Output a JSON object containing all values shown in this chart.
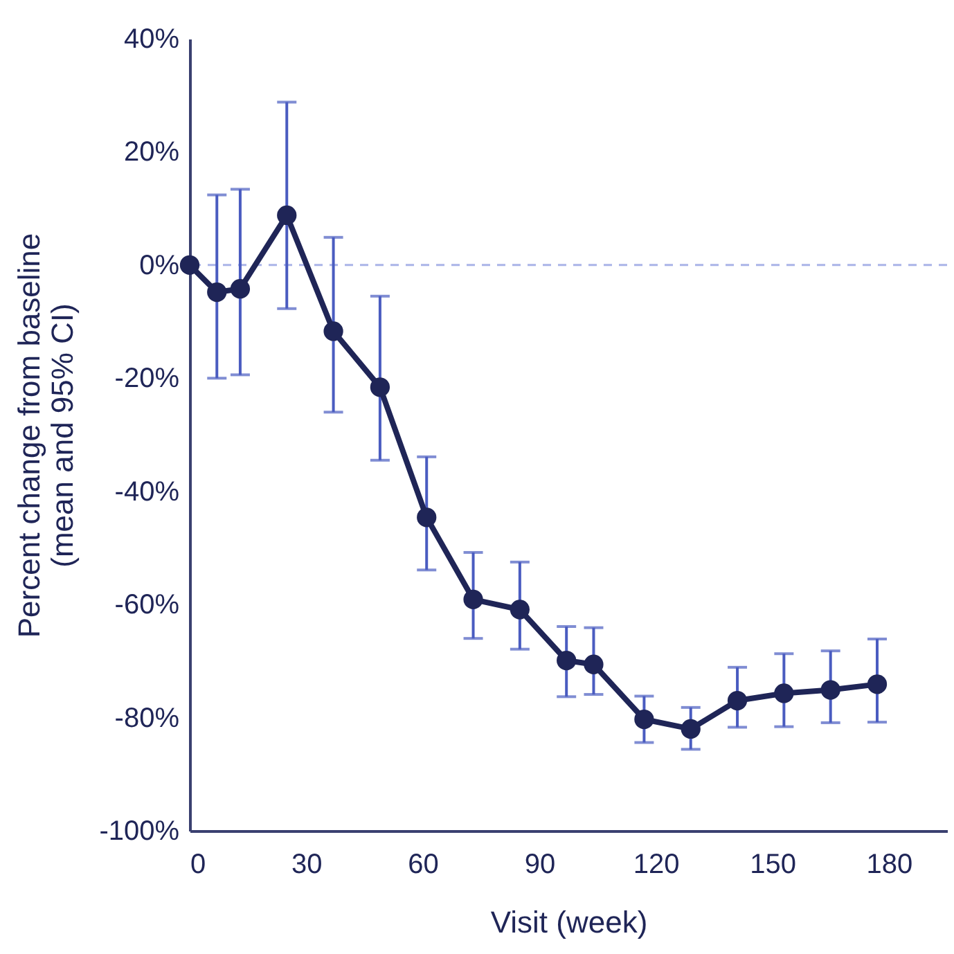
{
  "chart_data": {
    "type": "line",
    "xlabel": "Visit (week)",
    "ylabel": "Percent change from baseline (mean and 95% CI)",
    "x": [
      0,
      7,
      13,
      25,
      37,
      49,
      61,
      73,
      85,
      97,
      104,
      117,
      129,
      141,
      153,
      165,
      177
    ],
    "series": [
      {
        "color": "#1f2557",
        "values": [
          0,
          -4.8,
          -4.2,
          8.8,
          -11.7,
          -21.6,
          -44.6,
          -59.1,
          -60.9,
          -69.9,
          -70.6,
          -80.3,
          -82.0,
          -77.0,
          -75.7,
          -75.1,
          -74.1
        ],
        "errors": [
          null,
          [
            -20,
            12.4
          ],
          [
            -19.4,
            13.4
          ],
          [
            -7.7,
            28.8
          ],
          [
            -26,
            4.9
          ],
          [
            -34.5,
            -5.5
          ],
          [
            -53.9,
            -33.9
          ],
          [
            -66.0,
            -50.8
          ],
          [
            -67.9,
            -52.5
          ],
          [
            -76.3,
            -63.9
          ],
          [
            -75.9,
            -64.1
          ],
          [
            -84.4,
            -76.2
          ],
          [
            -85.6,
            -78.2
          ],
          [
            -81.7,
            -71.1
          ],
          [
            -81.6,
            -68.7
          ],
          [
            -80.9,
            -68.2
          ],
          [
            -80.8,
            -66.1
          ]
        ]
      }
    ],
    "xlim": [
      0,
      195
    ],
    "xticks": [
      0,
      30,
      60,
      90,
      120,
      150,
      180
    ],
    "ylim": [
      -100,
      40
    ],
    "yticks": [
      {
        "value": 40,
        "label": "40%"
      },
      {
        "value": 20,
        "label": "20%"
      },
      {
        "value": 0,
        "label": "0%"
      },
      {
        "value": -20,
        "label": "-20%"
      },
      {
        "value": -40,
        "label": "-40%"
      },
      {
        "value": -60,
        "label": "-60%"
      },
      {
        "value": -80,
        "label": "-80%"
      },
      {
        "value": -100,
        "label": "-100%"
      }
    ],
    "ref_lines": [
      {
        "axis": "y",
        "value": 0,
        "color": "#aab4e8",
        "line_style": "dashed"
      }
    ],
    "marker": "circle",
    "line_style": "solid",
    "grid": false
  }
}
